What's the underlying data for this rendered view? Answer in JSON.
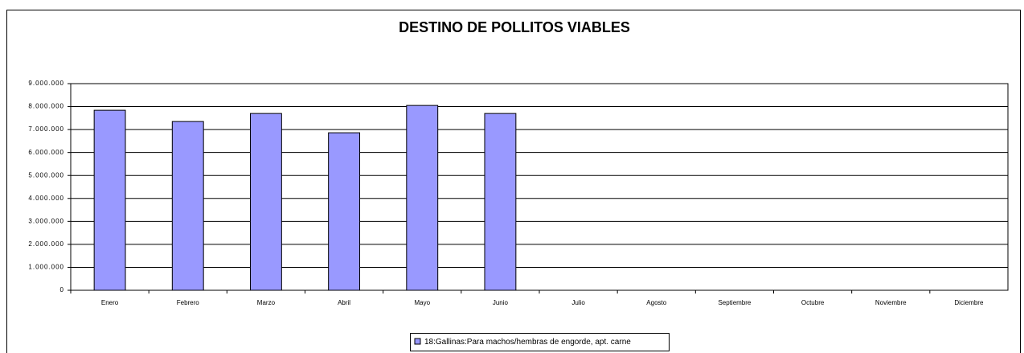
{
  "chart_data": {
    "type": "bar",
    "title": "DESTINO DE POLLITOS VIABLES",
    "categories": [
      "Enero",
      "Febrero",
      "Marzo",
      "Abril",
      "Mayo",
      "Junio",
      "Julio",
      "Agosto",
      "Septiembre",
      "Octubre",
      "Noviembre",
      "Diciembre"
    ],
    "series": [
      {
        "name": "18:Gallinas:Para machos/hembras de engorde, apt. carne",
        "color": "#9999ff",
        "values": [
          7840000,
          7350000,
          7700000,
          6860000,
          8050000,
          7700000,
          null,
          null,
          null,
          null,
          null,
          null
        ]
      }
    ],
    "ylim": [
      0,
      9000000
    ],
    "yticks": [
      0,
      {
        "value": 1000000,
        "label": "1.000.000"
      },
      {
        "value": 2000000,
        "label": "2.000.000"
      },
      {
        "value": 3000000,
        "label": "3.000.000"
      },
      {
        "value": 4000000,
        "label": "4.000.000"
      },
      {
        "value": 5000000,
        "label": "5.000.000"
      },
      {
        "value": 6000000,
        "label": "6.000.000"
      },
      {
        "value": 7000000,
        "label": "7.000.000"
      },
      {
        "value": 8000000,
        "label": "8.000.000"
      },
      {
        "value": 9000000,
        "label": "9.000.000"
      }
    ],
    "grid": true,
    "legend": "bottom"
  }
}
